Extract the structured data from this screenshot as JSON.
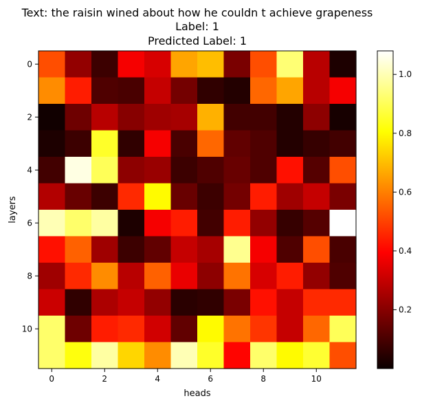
{
  "chart_data": {
    "type": "heatmap",
    "title": [
      "Text: the raisin wined about how he couldn t achieve grapeness",
      "Label: 1",
      "Predicted Label: 1"
    ],
    "xlabel": "heads",
    "ylabel": "layers",
    "x_ticks": [
      0,
      2,
      4,
      6,
      8,
      10
    ],
    "y_ticks": [
      0,
      2,
      4,
      6,
      8,
      10
    ],
    "colormap": "hot",
    "color_range": [
      0.0,
      1.08
    ],
    "colorbar_ticks": [
      0.2,
      0.4,
      0.6,
      0.8,
      1.0
    ],
    "colorbar_tick_labels": [
      "0.2",
      "0.4",
      "0.6",
      "0.8",
      "1.0"
    ],
    "values": [
      [
        0.52,
        0.22,
        0.08,
        0.38,
        0.33,
        0.66,
        0.7,
        0.18,
        0.52,
        0.93,
        0.28,
        0.03
      ],
      [
        0.62,
        0.44,
        0.11,
        0.1,
        0.3,
        0.17,
        0.06,
        0.04,
        0.56,
        0.66,
        0.28,
        0.38
      ],
      [
        0.01,
        0.16,
        0.28,
        0.2,
        0.24,
        0.25,
        0.68,
        0.09,
        0.09,
        0.04,
        0.21,
        0.02
      ],
      [
        0.03,
        0.08,
        0.85,
        0.06,
        0.38,
        0.1,
        0.56,
        0.14,
        0.11,
        0.04,
        0.07,
        0.09
      ],
      [
        0.09,
        1.05,
        0.9,
        0.21,
        0.23,
        0.08,
        0.11,
        0.15,
        0.11,
        0.42,
        0.12,
        0.52
      ],
      [
        0.27,
        0.15,
        0.08,
        0.46,
        0.8,
        0.15,
        0.08,
        0.17,
        0.44,
        0.24,
        0.3,
        0.18
      ],
      [
        1.0,
        0.92,
        0.98,
        0.03,
        0.38,
        0.44,
        0.09,
        0.44,
        0.22,
        0.07,
        0.12,
        1.08
      ],
      [
        0.42,
        0.55,
        0.24,
        0.08,
        0.14,
        0.3,
        0.25,
        0.96,
        0.38,
        0.11,
        0.52,
        0.1
      ],
      [
        0.24,
        0.46,
        0.62,
        0.28,
        0.55,
        0.36,
        0.21,
        0.58,
        0.33,
        0.44,
        0.22,
        0.11
      ],
      [
        0.31,
        0.06,
        0.26,
        0.3,
        0.22,
        0.05,
        0.06,
        0.18,
        0.42,
        0.3,
        0.46,
        0.46
      ],
      [
        0.92,
        0.16,
        0.44,
        0.46,
        0.32,
        0.14,
        0.8,
        0.58,
        0.48,
        0.3,
        0.56,
        0.9
      ],
      [
        0.92,
        0.82,
        0.98,
        0.74,
        0.62,
        1.0,
        0.85,
        0.4,
        0.92,
        0.8,
        0.86,
        0.52
      ]
    ]
  }
}
